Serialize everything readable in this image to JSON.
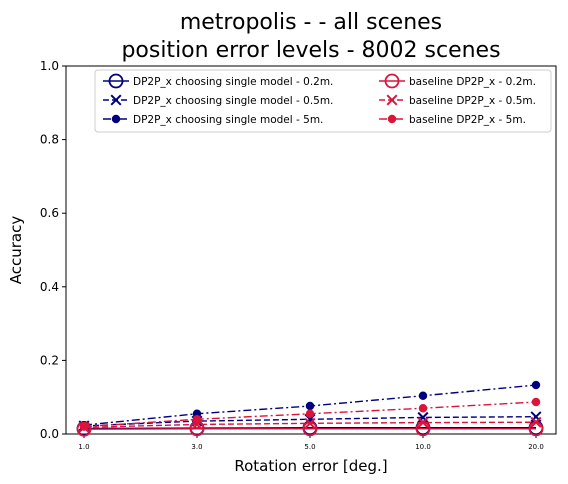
{
  "chart_data": {
    "type": "line",
    "title_line1": "metropolis -  - all scenes",
    "title_line2": "position error levels - 8002 scenes",
    "xlabel": "Rotation error [deg.]",
    "ylabel": "Accuracy",
    "categories": [
      "1.0",
      "3.0",
      "5.0",
      "10.0",
      "20.0"
    ],
    "ylim": [
      0,
      1
    ],
    "yticks": [
      "0.0",
      "0.2",
      "0.4",
      "0.6",
      "0.8",
      "1.0"
    ],
    "legend_position": "top-right",
    "series": [
      {
        "name": "DP2P_x choosing single model - 0.2m.",
        "color": "#00007f",
        "marker": "open-circle",
        "dash": "solid",
        "values": [
          0.015,
          0.016,
          0.017,
          0.017,
          0.017
        ]
      },
      {
        "name": "DP2P_x choosing single model - 0.5m.",
        "color": "#00007f",
        "marker": "x",
        "dash": "dashed",
        "values": [
          0.022,
          0.035,
          0.04,
          0.045,
          0.047
        ]
      },
      {
        "name": "DP2P_x choosing single model - 5m.",
        "color": "#00007f",
        "marker": "dot",
        "dash": "dashdot",
        "values": [
          0.024,
          0.055,
          0.076,
          0.104,
          0.133
        ]
      },
      {
        "name": "baseline DP2P_x - 0.2m.",
        "color": "#dc143c",
        "marker": "open-circle",
        "dash": "solid",
        "values": [
          0.013,
          0.014,
          0.014,
          0.014,
          0.014
        ]
      },
      {
        "name": "baseline DP2P_x - 0.5m.",
        "color": "#dc143c",
        "marker": "x",
        "dash": "dashed",
        "values": [
          0.018,
          0.026,
          0.029,
          0.031,
          0.032
        ]
      },
      {
        "name": "baseline DP2P_x - 5m.",
        "color": "#dc143c",
        "marker": "dot",
        "dash": "dashdot",
        "values": [
          0.02,
          0.04,
          0.055,
          0.07,
          0.087
        ]
      }
    ]
  }
}
